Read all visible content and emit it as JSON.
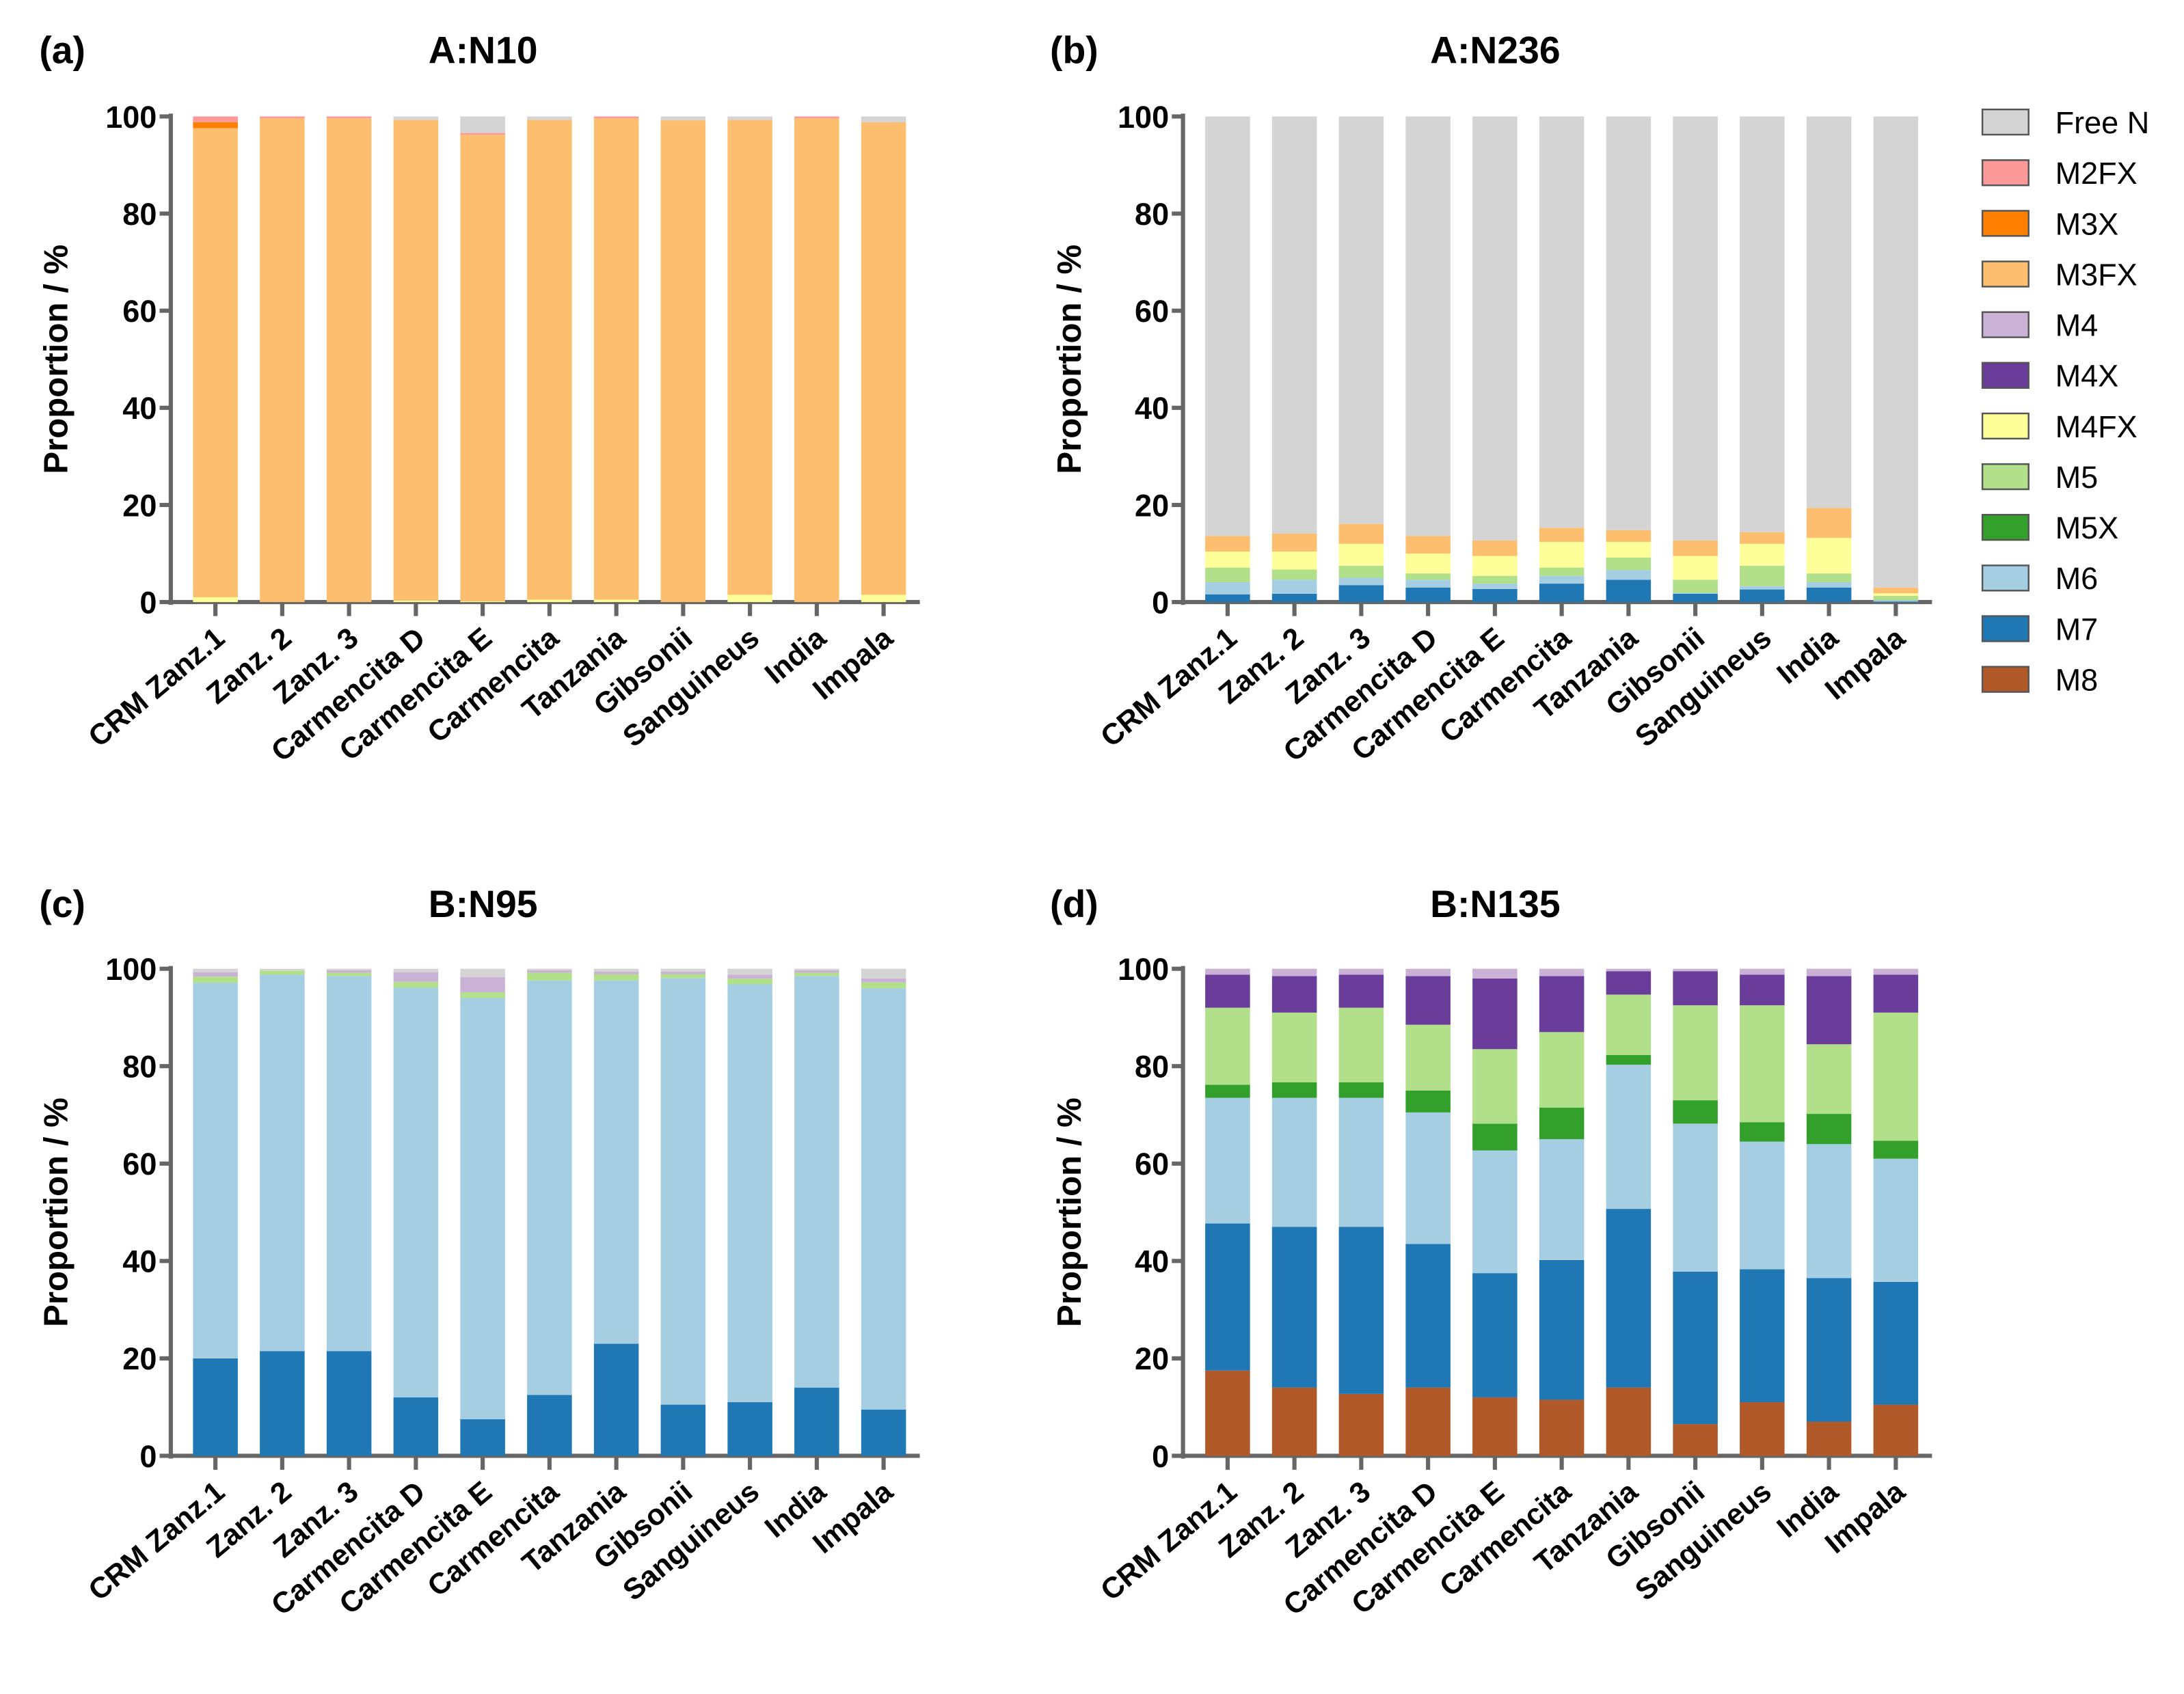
{
  "legend": {
    "entries": [
      "Free N",
      "M2FX",
      "M3X",
      "M3FX",
      "M4",
      "M4X",
      "M4FX",
      "M5",
      "M5X",
      "M6",
      "M7",
      "M8"
    ],
    "colors": {
      "Free N": "#d4d4d4",
      "M2FX": "#fb9a99",
      "M3X": "#ff7f00",
      "M3FX": "#fdbf6f",
      "M4": "#cab2d6",
      "M4X": "#6a3d9a",
      "M4FX": "#ffff99",
      "M5": "#b2df8a",
      "M5X": "#33a02c",
      "M6": "#a6cee3",
      "M7": "#1f78b4",
      "M8": "#b15928"
    }
  },
  "chart_data": [
    {
      "panel": "(a)",
      "type": "bar",
      "stacked": true,
      "title": "A:N10",
      "xlabel": "",
      "ylabel": "Proportion / %",
      "ylim": [
        0,
        100
      ],
      "yticks": [
        0,
        20,
        40,
        60,
        80,
        100
      ],
      "grid": false,
      "categories": [
        "CRM Zanz.1",
        "Zanz. 2",
        "Zanz. 3",
        "Carmencita D",
        "Carmencita E",
        "Carmencita",
        "Tanzania",
        "Gibsonii",
        "Sanguineus",
        "India",
        "Impala"
      ],
      "series": [
        {
          "name": "M4FX",
          "values": [
            1.0,
            0,
            0,
            0.3,
            0.2,
            0.5,
            0.5,
            0,
            1.5,
            0,
            1.5
          ]
        },
        {
          "name": "M3FX",
          "values": [
            96.6,
            99.6,
            99.6,
            99.0,
            96.0,
            98.8,
            99.1,
            99.2,
            97.8,
            99.6,
            97.3
          ]
        },
        {
          "name": "M3X",
          "values": [
            1.2,
            0,
            0,
            0,
            0,
            0,
            0,
            0,
            0,
            0,
            0
          ]
        },
        {
          "name": "M2FX",
          "values": [
            1.2,
            0.4,
            0.4,
            0,
            0.4,
            0,
            0.4,
            0,
            0,
            0.4,
            0
          ]
        },
        {
          "name": "Free N",
          "values": [
            0,
            0,
            0,
            0.7,
            3.4,
            0.7,
            0,
            0.8,
            0.7,
            0,
            1.2
          ]
        }
      ]
    },
    {
      "panel": "(b)",
      "type": "bar",
      "stacked": true,
      "title": "A:N236",
      "xlabel": "",
      "ylabel": "Proportion / %",
      "ylim": [
        0,
        100
      ],
      "yticks": [
        0,
        20,
        40,
        60,
        80,
        100
      ],
      "grid": false,
      "categories": [
        "CRM Zanz.1",
        "Zanz. 2",
        "Zanz. 3",
        "Carmencita D",
        "Carmencita E",
        "Carmencita",
        "Tanzania",
        "Gibsonii",
        "Sanguineus",
        "India",
        "Impala"
      ],
      "series": [
        {
          "name": "M7",
          "values": [
            1.6,
            1.7,
            3.5,
            3.0,
            2.7,
            3.8,
            4.6,
            1.7,
            2.6,
            3.0,
            0.1
          ]
        },
        {
          "name": "M6",
          "values": [
            2.5,
            2.9,
            1.5,
            1.6,
            1.1,
            1.6,
            2.0,
            0.2,
            0.7,
            1.1,
            0.3
          ]
        },
        {
          "name": "M5",
          "values": [
            3.0,
            2.1,
            2.5,
            1.3,
            1.6,
            1.7,
            2.6,
            2.7,
            4.2,
            1.8,
            0.9
          ]
        },
        {
          "name": "M4FX",
          "values": [
            3.3,
            3.7,
            4.5,
            4.1,
            4.1,
            5.3,
            3.2,
            4.9,
            4.5,
            7.3,
            0.5
          ]
        },
        {
          "name": "M3FX",
          "values": [
            3.2,
            3.7,
            4.1,
            3.6,
            3.2,
            2.9,
            2.4,
            3.2,
            2.4,
            6.2,
            1.2
          ]
        },
        {
          "name": "Free N",
          "values": [
            86.4,
            85.9,
            83.9,
            86.4,
            87.3,
            84.7,
            85.2,
            87.3,
            85.6,
            80.6,
            97.0
          ]
        }
      ]
    },
    {
      "panel": "(c)",
      "type": "bar",
      "stacked": true,
      "title": "B:N95",
      "xlabel": "",
      "ylabel": "Proportion / %",
      "ylim": [
        0,
        100
      ],
      "yticks": [
        0,
        20,
        40,
        60,
        80,
        100
      ],
      "grid": false,
      "categories": [
        "CRM Zanz.1",
        "Zanz. 2",
        "Zanz. 3",
        "Carmencita D",
        "Carmencita E",
        "Carmencita",
        "Tanzania",
        "Gibsonii",
        "Sanguineus",
        "India",
        "Impala"
      ],
      "series": [
        {
          "name": "M7",
          "values": [
            20.0,
            21.5,
            21.5,
            12.0,
            7.5,
            12.5,
            23.0,
            10.5,
            11.0,
            14.0,
            9.5
          ]
        },
        {
          "name": "M6",
          "values": [
            77.1,
            77.3,
            77.0,
            84.1,
            86.5,
            85.1,
            74.6,
            87.6,
            85.8,
            84.5,
            86.5
          ]
        },
        {
          "name": "M5",
          "values": [
            1.3,
            0.8,
            0.7,
            1.2,
            1.2,
            1.6,
            1.3,
            0.8,
            1.2,
            0.7,
            1.2
          ]
        },
        {
          "name": "M4",
          "values": [
            0.9,
            0,
            0.5,
            2.0,
            3.1,
            0.5,
            0.5,
            0.5,
            0.8,
            0.5,
            0.8
          ]
        },
        {
          "name": "Free N",
          "values": [
            0.7,
            0.4,
            0.3,
            0.7,
            1.7,
            0.3,
            0.6,
            0.6,
            1.2,
            0.3,
            2.0
          ]
        }
      ]
    },
    {
      "panel": "(d)",
      "type": "bar",
      "stacked": true,
      "title": "B:N135",
      "xlabel": "",
      "ylabel": "Proportion / %",
      "ylim": [
        0,
        100
      ],
      "yticks": [
        0,
        20,
        40,
        60,
        80,
        100
      ],
      "grid": false,
      "categories": [
        "CRM Zanz.1",
        "Zanz. 2",
        "Zanz. 3",
        "Carmencita D",
        "Carmencita E",
        "Carmencita",
        "Tanzania",
        "Gibsonii",
        "Sanguineus",
        "India",
        "Impala"
      ],
      "series": [
        {
          "name": "M8",
          "values": [
            17.5,
            14.0,
            12.7,
            14.0,
            12.0,
            11.5,
            14.0,
            6.5,
            11.0,
            7.0,
            10.5
          ]
        },
        {
          "name": "M7",
          "values": [
            30.2,
            33.0,
            34.3,
            29.5,
            25.5,
            28.7,
            36.7,
            31.3,
            27.3,
            29.5,
            25.2
          ]
        },
        {
          "name": "M6",
          "values": [
            25.8,
            26.5,
            26.5,
            27.0,
            25.2,
            24.8,
            29.6,
            30.4,
            26.2,
            27.5,
            25.3
          ]
        },
        {
          "name": "M5X",
          "values": [
            2.7,
            3.2,
            3.2,
            4.5,
            5.5,
            6.5,
            2.0,
            4.8,
            4.0,
            6.2,
            3.7
          ]
        },
        {
          "name": "M5",
          "values": [
            15.8,
            14.3,
            15.3,
            13.5,
            15.3,
            15.5,
            12.4,
            19.5,
            24.0,
            14.3,
            26.3
          ]
        },
        {
          "name": "M4X",
          "values": [
            6.8,
            7.5,
            6.8,
            10.0,
            14.5,
            11.5,
            4.8,
            7.0,
            6.3,
            14.0,
            7.8
          ]
        },
        {
          "name": "M4",
          "values": [
            1.2,
            1.5,
            1.2,
            1.5,
            2.0,
            1.5,
            0.5,
            0.5,
            1.2,
            1.5,
            1.2
          ]
        }
      ]
    }
  ]
}
